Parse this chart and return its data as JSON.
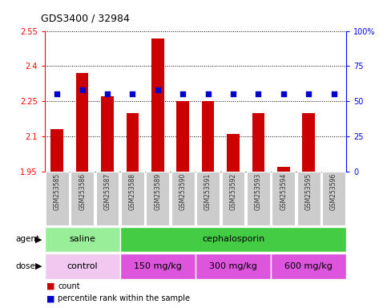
{
  "title": "GDS3400 / 32984",
  "samples": [
    "GSM253585",
    "GSM253586",
    "GSM253587",
    "GSM253588",
    "GSM253589",
    "GSM253590",
    "GSM253591",
    "GSM253592",
    "GSM253593",
    "GSM253594",
    "GSM253595",
    "GSM253596"
  ],
  "bar_values": [
    2.13,
    2.37,
    2.27,
    2.2,
    2.52,
    2.25,
    2.25,
    2.11,
    2.2,
    1.97,
    2.2,
    1.95
  ],
  "dot_values": [
    55,
    58,
    55,
    55,
    58,
    55,
    55,
    55,
    55,
    55,
    55,
    55
  ],
  "bar_base": 1.95,
  "ylim_left": [
    1.95,
    2.55
  ],
  "ylim_right": [
    0,
    100
  ],
  "yticks_left": [
    1.95,
    2.1,
    2.25,
    2.4,
    2.55
  ],
  "ytick_labels_left": [
    "1.95",
    "2.1",
    "2.25",
    "2.4",
    "2.55"
  ],
  "yticks_right": [
    0,
    25,
    50,
    75,
    100
  ],
  "ytick_labels_right": [
    "0",
    "25",
    "50",
    "75",
    "100%"
  ],
  "bar_color": "#cc0000",
  "dot_color": "#0000cc",
  "agent_groups": [
    {
      "label": "saline",
      "start": 0,
      "end": 3,
      "color": "#99ee99"
    },
    {
      "label": "cephalosporin",
      "start": 3,
      "end": 12,
      "color": "#44cc44"
    }
  ],
  "dose_groups": [
    {
      "label": "control",
      "start": 0,
      "end": 3,
      "color": "#f0c8f0"
    },
    {
      "label": "150 mg/kg",
      "start": 3,
      "end": 6,
      "color": "#dd55dd"
    },
    {
      "label": "300 mg/kg",
      "start": 6,
      "end": 9,
      "color": "#dd55dd"
    },
    {
      "label": "600 mg/kg",
      "start": 9,
      "end": 12,
      "color": "#dd55dd"
    }
  ],
  "legend_items": [
    {
      "label": "count",
      "color": "#cc0000"
    },
    {
      "label": "percentile rank within the sample",
      "color": "#0000cc"
    }
  ],
  "background_color": "#ffffff",
  "agent_label": "agent",
  "dose_label": "dose",
  "sample_box_color": "#cccccc",
  "spine_color": "#888888"
}
